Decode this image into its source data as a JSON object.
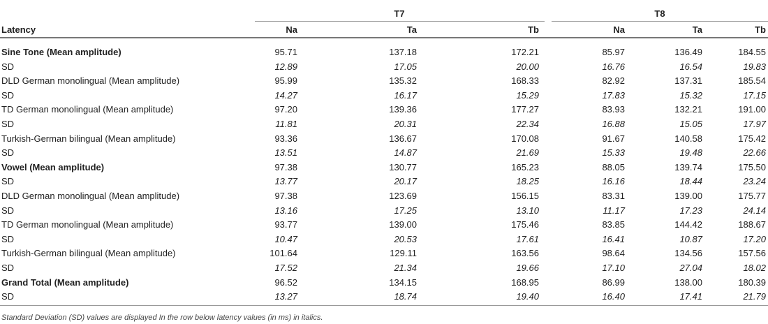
{
  "table": {
    "row_header": "Latency",
    "groups": [
      "T7",
      "T8"
    ],
    "columns": [
      "Na",
      "Ta",
      "Tb",
      "Na",
      "Ta",
      "Tb"
    ],
    "rows": [
      {
        "label": "Sine Tone (Mean amplitude)",
        "emphasis": "bold",
        "values": [
          "95.71",
          "137.18",
          "172.21",
          "85.97",
          "136.49",
          "184.55"
        ]
      },
      {
        "label": "SD",
        "emphasis": "italic",
        "values": [
          "12.89",
          "17.05",
          "20.00",
          "16.76",
          "16.54",
          "19.83"
        ]
      },
      {
        "label": "DLD German monolingual (Mean amplitude)",
        "emphasis": "normal",
        "values": [
          "95.99",
          "135.32",
          "168.33",
          "82.92",
          "137.31",
          "185.54"
        ]
      },
      {
        "label": "SD",
        "emphasis": "italic",
        "values": [
          "14.27",
          "16.17",
          "15.29",
          "17.83",
          "15.32",
          "17.15"
        ]
      },
      {
        "label": "TD German monolingual (Mean amplitude)",
        "emphasis": "normal",
        "values": [
          "97.20",
          "139.36",
          "177.27",
          "83.93",
          "132.21",
          "191.00"
        ]
      },
      {
        "label": "SD",
        "emphasis": "italic",
        "values": [
          "11.81",
          "20.31",
          "22.34",
          "16.88",
          "15.05",
          "17.97"
        ]
      },
      {
        "label": "Turkish-German bilingual (Mean amplitude)",
        "emphasis": "normal",
        "values": [
          "93.36",
          "136.67",
          "170.08",
          "91.67",
          "140.58",
          "175.42"
        ]
      },
      {
        "label": "SD",
        "emphasis": "italic",
        "values": [
          "13.51",
          "14.87",
          "21.69",
          "15.33",
          "19.48",
          "22.66"
        ]
      },
      {
        "label": "Vowel (Mean amplitude)",
        "emphasis": "bold",
        "values": [
          "97.38",
          "130.77",
          "165.23",
          "88.05",
          "139.74",
          "175.50"
        ]
      },
      {
        "label": "SD",
        "emphasis": "italic",
        "values": [
          "13.77",
          "20.17",
          "18.25",
          "16.16",
          "18.44",
          "23.24"
        ]
      },
      {
        "label": "DLD German monolingual (Mean amplitude)",
        "emphasis": "normal",
        "values": [
          "97.38",
          "123.69",
          "156.15",
          "83.31",
          "139.00",
          "175.77"
        ]
      },
      {
        "label": "SD",
        "emphasis": "italic",
        "values": [
          "13.16",
          "17.25",
          "13.10",
          "11.17",
          "17.23",
          "24.14"
        ]
      },
      {
        "label": "TD German monolingual (Mean amplitude)",
        "emphasis": "normal",
        "values": [
          "93.77",
          "139.00",
          "175.46",
          "83.85",
          "144.42",
          "188.67"
        ]
      },
      {
        "label": "SD",
        "emphasis": "italic",
        "values": [
          "10.47",
          "20.53",
          "17.61",
          "16.41",
          "10.87",
          "17.20"
        ]
      },
      {
        "label": "Turkish-German bilingual (Mean amplitude)",
        "emphasis": "normal",
        "values": [
          "101.64",
          "129.11",
          "163.56",
          "98.64",
          "134.56",
          "157.56"
        ]
      },
      {
        "label": "SD",
        "emphasis": "italic",
        "values": [
          "17.52",
          "21.34",
          "19.66",
          "17.10",
          "27.04",
          "18.02"
        ]
      },
      {
        "label": "Grand Total (Mean amplitude)",
        "emphasis": "bold",
        "values": [
          "96.52",
          "134.15",
          "168.95",
          "86.99",
          "138.00",
          "180.39"
        ]
      },
      {
        "label": "SD",
        "emphasis": "italic",
        "values": [
          "13.27",
          "18.74",
          "19.40",
          "16.40",
          "17.41",
          "21.79"
        ]
      }
    ],
    "footnote": "Standard Deviation (SD) values are displayed In the row below latency values (in ms) in italics."
  }
}
